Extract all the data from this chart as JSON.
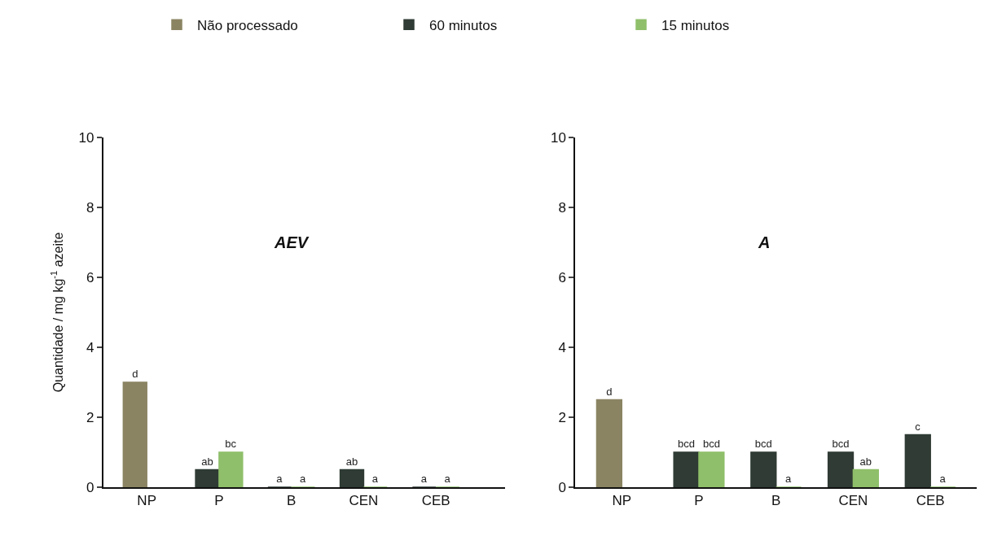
{
  "chart_data": [
    {
      "type": "bar",
      "title": "AEV",
      "ylabel": "Quantidade / mg kg$^{-1}$ azeite",
      "categories": [
        "NP",
        "P",
        "B",
        "CEN",
        "CEB"
      ],
      "ylim": [
        0,
        10
      ],
      "yticks": [
        0,
        2,
        4,
        6,
        8,
        10
      ],
      "legend": "top",
      "series": [
        {
          "name": "Não processado",
          "color": "#8b8463",
          "values": [
            3.0,
            null,
            null,
            null,
            null
          ],
          "value_labels": [
            "d",
            null,
            null,
            null,
            null
          ]
        },
        {
          "name": "60 minutos",
          "color": "#2f3b34",
          "values": [
            null,
            0.5,
            0,
            0.5,
            0
          ],
          "value_labels": [
            null,
            "ab",
            "a",
            "ab",
            "a"
          ]
        },
        {
          "name": "15 minutos",
          "color": "#8fbf6a",
          "values": [
            null,
            1.0,
            0,
            0,
            0
          ],
          "value_labels": [
            null,
            "bc",
            "a",
            "a",
            "a"
          ]
        }
      ]
    },
    {
      "type": "bar",
      "title": "A",
      "categories": [
        "NP",
        "P",
        "B",
        "CEN",
        "CEB"
      ],
      "ylim": [
        0,
        10
      ],
      "yticks": [
        0,
        2,
        4,
        6,
        8,
        10
      ],
      "series": [
        {
          "color": "#8b8463",
          "values": [
            2.5,
            null,
            null,
            null,
            null
          ],
          "value_labels": [
            "d",
            null,
            null,
            null,
            null
          ]
        },
        {
          "color": "#2f3b34",
          "values": [
            null,
            1.0,
            1.0,
            1.0,
            1.5
          ],
          "value_labels": [
            null,
            "bcd",
            "bcd",
            "bcd",
            "c"
          ]
        },
        {
          "color": "#8fbf6a",
          "values": [
            null,
            1.0,
            0,
            0.5,
            0
          ],
          "value_labels": [
            null,
            "bcd",
            "a",
            "ab",
            "a"
          ]
        }
      ]
    }
  ]
}
